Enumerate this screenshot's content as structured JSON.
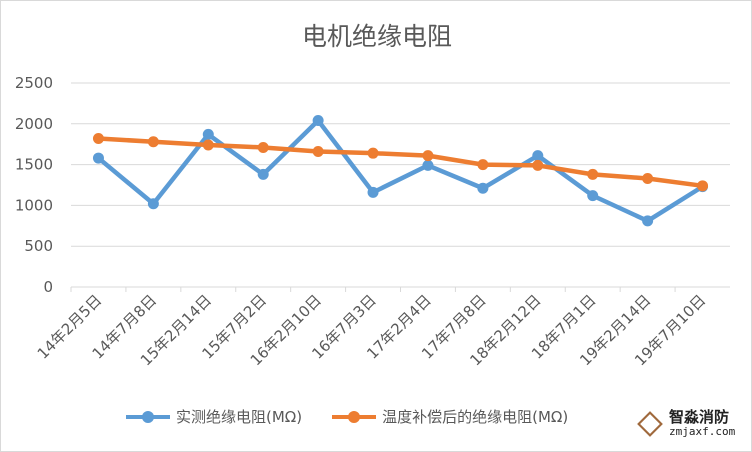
{
  "chart_data": {
    "type": "line",
    "title": "电机绝缘电阻",
    "categories": [
      "14年2月5日",
      "14年7月8日",
      "15年2月14日",
      "15年7月2日",
      "16年2月10日",
      "16年7月3日",
      "17年2月4日",
      "17年7月8日",
      "18年2月12日",
      "18年7月1日",
      "19年2月14日",
      "19年7月10日"
    ],
    "series": [
      {
        "name": "实测绝缘电阻(MΩ)",
        "color": "#5b9bd5",
        "values": [
          1580,
          1020,
          1870,
          1380,
          2040,
          1160,
          1490,
          1210,
          1610,
          1120,
          810,
          1230
        ]
      },
      {
        "name": "温度补偿后的绝缘电阻(MΩ)",
        "color": "#ed7d31",
        "values": [
          1820,
          1780,
          1740,
          1710,
          1660,
          1640,
          1610,
          1500,
          1490,
          1380,
          1330,
          1240
        ]
      }
    ],
    "yticks": [
      0,
      500,
      1000,
      1500,
      2000,
      2500
    ],
    "ylim": [
      0,
      2500
    ],
    "grid": true,
    "legend": "bottom",
    "xlabel": "",
    "ylabel": ""
  },
  "watermark": {
    "name": "智淼消防",
    "url": "zmjaxf.com"
  }
}
